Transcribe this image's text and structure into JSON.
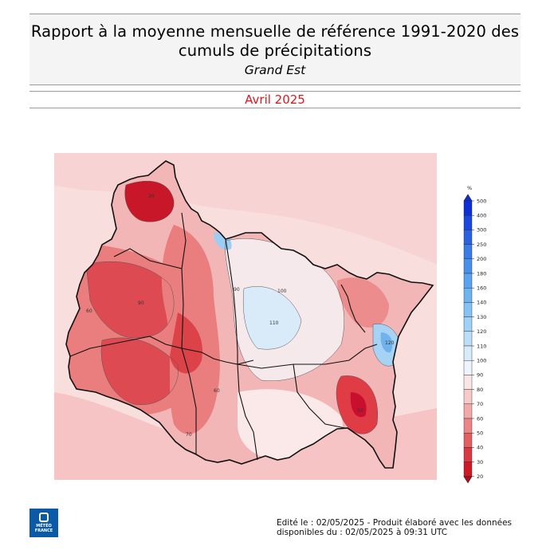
{
  "header": {
    "title_line1": "Rapport à la moyenne mensuelle de référence 1991-2020 des",
    "title_line2": "cumuls de précipitations",
    "region": "Grand Est",
    "period": "Avril 2025"
  },
  "map": {
    "variable": "Rapport à la moyenne mensuelle de référence 1991-2020 des cumuls de précipitations",
    "unit": "%",
    "contour_labels": [
      "30",
      "60",
      "40",
      "90",
      "100",
      "110",
      "120",
      "50",
      "70"
    ],
    "colors": {
      "very_dry": "#c8102e",
      "dry": "#e03c46",
      "moderately_dry": "#ee8c8c",
      "slightly_dry": "#f7caca",
      "normal": "#fdeeee",
      "slightly_wet": "#dceefb",
      "wet": "#a6d3f4"
    }
  },
  "legend": {
    "unit": "%",
    "ticks": [
      "500",
      "400",
      "300",
      "250",
      "200",
      "180",
      "160",
      "140",
      "130",
      "120",
      "110",
      "100",
      "90",
      "80",
      "70",
      "60",
      "50",
      "40",
      "30",
      "20"
    ],
    "colors": [
      "#0d2fd6",
      "#1a48dd",
      "#2a63e0",
      "#3a7be5",
      "#4a90ea",
      "#5aa3ee",
      "#6db4f1",
      "#86c3f4",
      "#a0d1f6",
      "#bcdef8",
      "#d7ebfa",
      "#eef4fb",
      "#fbe6e6",
      "#f7caca",
      "#f2a9a9",
      "#ec8585",
      "#e25f62",
      "#d73a43",
      "#cc1a26",
      "#b50d18"
    ]
  },
  "logo": {
    "line1": "MÉTÉO",
    "line2": "FRANCE"
  },
  "footer": {
    "line1": "Edité le : 02/05/2025 - Produit élaboré avec les données",
    "line2": "disponibles du : 02/05/2025 à 09:31 UTC"
  }
}
